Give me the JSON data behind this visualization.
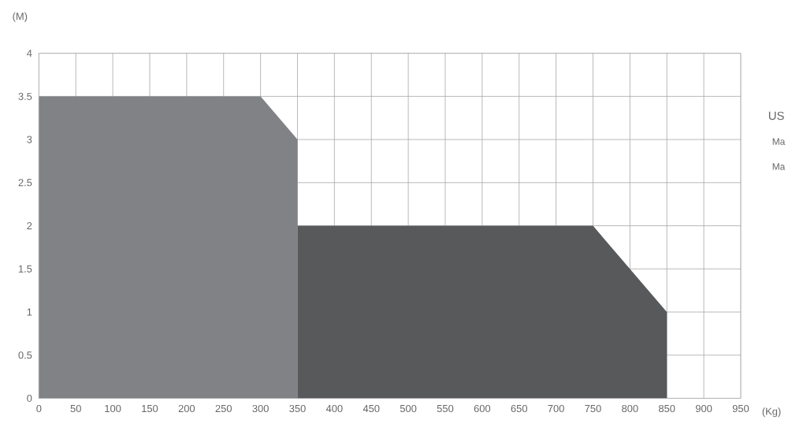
{
  "chart_data": {
    "type": "area",
    "xlabel": "(Kg)",
    "ylabel": "(M)",
    "annotations": [
      "US",
      "Ma",
      "Ma"
    ],
    "series": [
      {
        "color": "#818285",
        "x": [
          0,
          300,
          350
        ],
        "values": [
          3.5,
          3.5,
          3
        ]
      },
      {
        "color": "#58595b",
        "x": [
          350,
          750,
          850
        ],
        "values": [
          2,
          2,
          1
        ]
      }
    ],
    "xlim": [
      0,
      950
    ],
    "xticks": [
      0,
      50,
      100,
      150,
      200,
      250,
      300,
      350,
      400,
      450,
      500,
      550,
      600,
      650,
      700,
      750,
      800,
      850,
      900,
      950
    ],
    "ylim": [
      0,
      4
    ],
    "yticks": [
      0,
      0.5,
      1,
      1.5,
      2,
      2.5,
      3,
      3.5,
      4
    ],
    "grid": true
  }
}
